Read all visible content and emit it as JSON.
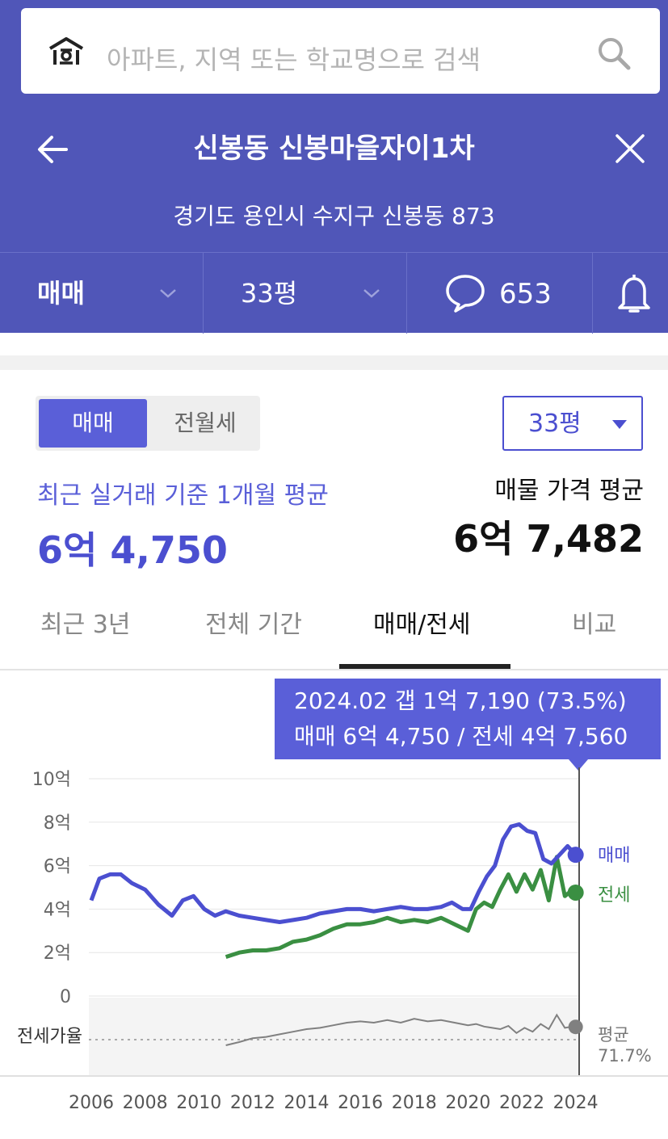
{
  "search": {
    "placeholder": "아파트, 지역 또는 학교명으로 검색",
    "logo_icon": "house-logo-icon",
    "search_icon": "search-icon"
  },
  "header": {
    "title": "신봉동 신봉마을자이1차",
    "address": "경기도 용인시 수지구 신봉동 873",
    "back_icon": "back-arrow-icon",
    "close_icon": "close-icon"
  },
  "filters": {
    "trade_type": "매매",
    "size": "33평",
    "comment_count": "653",
    "comment_icon": "speech-bubble-icon",
    "alert_icon": "bell-icon"
  },
  "toggle": {
    "active": "매매",
    "inactive": "전월세"
  },
  "size_select": "33평",
  "summary": {
    "recent_label": "최근 실거래 기준 1개월 평균",
    "recent_value": "6억 4,750",
    "listing_label": "매물 가격 평균",
    "listing_value": "6억 7,482"
  },
  "tabs": [
    "최근 3년",
    "전체 기간",
    "매매/전세",
    "비교"
  ],
  "active_tab": 2,
  "tooltip": {
    "line1": "2024.02  갭 1억 7,190 (73.5%)",
    "line2": "매매 6억 4,750 / 전세 4억 7,560"
  },
  "colors": {
    "brand": "#5056b8",
    "sale": "#4b4fd0",
    "jeonse": "#3a8f42",
    "ratio": "#808080"
  },
  "chart_data": {
    "type": "line",
    "title": "",
    "xlabel": "",
    "ylabel": "",
    "x_ticks": [
      "2006",
      "2008",
      "2010",
      "2012",
      "2014",
      "2016",
      "2018",
      "2020",
      "2022",
      "2024"
    ],
    "y_ticks": [
      "10억",
      "8억",
      "6억",
      "4억",
      "2억",
      "0"
    ],
    "ylim": [
      0,
      10
    ],
    "xlim": [
      2006,
      2024.1
    ],
    "series": [
      {
        "name": "매매",
        "x": [
          2006.0,
          2006.3,
          2006.7,
          2007.1,
          2007.5,
          2008.0,
          2008.5,
          2009.0,
          2009.4,
          2009.8,
          2010.2,
          2010.6,
          2011.0,
          2011.5,
          2012.0,
          2012.5,
          2013.0,
          2013.5,
          2014.0,
          2014.5,
          2015.0,
          2015.5,
          2016.0,
          2016.5,
          2017.0,
          2017.5,
          2018.0,
          2018.5,
          2019.0,
          2019.4,
          2019.8,
          2020.1,
          2020.4,
          2020.7,
          2021.0,
          2021.3,
          2021.6,
          2021.9,
          2022.2,
          2022.5,
          2022.8,
          2023.1,
          2023.4,
          2023.7,
          2024.0
        ],
        "values": [
          4.4,
          5.4,
          5.6,
          5.6,
          5.2,
          4.9,
          4.2,
          3.7,
          4.4,
          4.6,
          4.0,
          3.7,
          3.9,
          3.7,
          3.6,
          3.5,
          3.4,
          3.5,
          3.6,
          3.8,
          3.9,
          4.0,
          4.0,
          3.9,
          4.0,
          4.1,
          4.0,
          4.0,
          4.1,
          4.3,
          4.0,
          4.0,
          4.8,
          5.5,
          6.0,
          7.2,
          7.8,
          7.9,
          7.6,
          7.5,
          6.3,
          6.1,
          6.5,
          6.9,
          6.5
        ]
      },
      {
        "name": "전세",
        "x": [
          2011.0,
          2011.5,
          2012.0,
          2012.5,
          2013.0,
          2013.5,
          2014.0,
          2014.5,
          2015.0,
          2015.5,
          2016.0,
          2016.5,
          2017.0,
          2017.5,
          2018.0,
          2018.5,
          2019.0,
          2019.5,
          2020.0,
          2020.3,
          2020.6,
          2020.9,
          2021.2,
          2021.5,
          2021.8,
          2022.1,
          2022.4,
          2022.7,
          2023.0,
          2023.3,
          2023.6,
          2023.9,
          2024.0
        ],
        "values": [
          1.8,
          2.0,
          2.1,
          2.1,
          2.2,
          2.5,
          2.6,
          2.8,
          3.1,
          3.3,
          3.3,
          3.4,
          3.6,
          3.4,
          3.5,
          3.4,
          3.6,
          3.3,
          3.0,
          4.0,
          4.3,
          4.1,
          4.9,
          5.6,
          4.8,
          5.6,
          4.9,
          5.8,
          4.4,
          6.4,
          4.6,
          4.9,
          4.76
        ]
      },
      {
        "name": "전세가율",
        "x": [
          2011.0,
          2011.5,
          2012.0,
          2012.5,
          2013.0,
          2013.5,
          2014.0,
          2014.5,
          2015.0,
          2015.5,
          2016.0,
          2016.5,
          2017.0,
          2017.5,
          2018.0,
          2018.5,
          2019.0,
          2019.5,
          2020.0,
          2020.3,
          2020.6,
          2020.9,
          2021.2,
          2021.5,
          2021.8,
          2022.1,
          2022.4,
          2022.7,
          2023.0,
          2023.3,
          2023.6,
          2023.9,
          2024.0
        ],
        "values": [
          45,
          50,
          56,
          58,
          62,
          66,
          70,
          72,
          76,
          80,
          82,
          80,
          84,
          80,
          86,
          82,
          84,
          80,
          76,
          78,
          74,
          72,
          70,
          75,
          64,
          72,
          66,
          78,
          70,
          92,
          72,
          74,
          73.5
        ]
      }
    ],
    "ratio_label": "전세가율",
    "average_label": "평균",
    "average_value": "71.7%",
    "legend": [
      "매매",
      "전세"
    ]
  }
}
